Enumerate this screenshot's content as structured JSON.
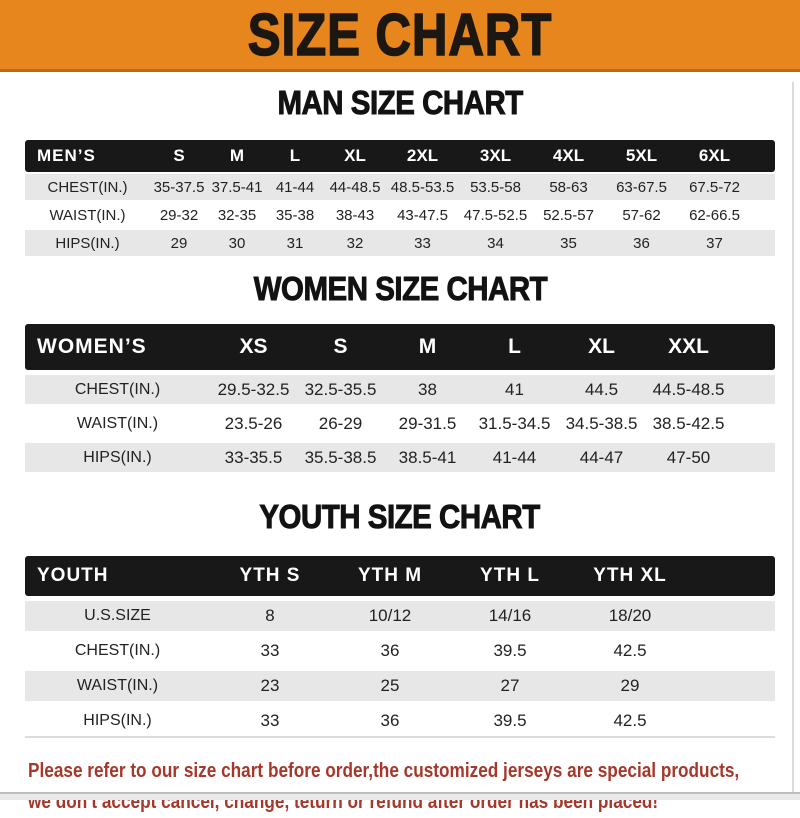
{
  "banner": {
    "title": "SIZE CHART"
  },
  "sections": [
    {
      "heading": "MAN SIZE CHART",
      "label": "MEN’S",
      "columns": [
        "S",
        "M",
        "L",
        "XL",
        "2XL",
        "3XL",
        "4XL",
        "5XL",
        "6XL"
      ],
      "rows": [
        {
          "label": "CHEST(IN.)",
          "values": [
            "35-37.5",
            "37.5-41",
            "41-44",
            "44-48.5",
            "48.5-53.5",
            "53.5-58",
            "58-63",
            "63-67.5",
            "67.5-72"
          ]
        },
        {
          "label": "WAIST(IN.)",
          "values": [
            "29-32",
            "32-35",
            "35-38",
            "38-43",
            "43-47.5",
            "47.5-52.5",
            "52.5-57",
            "57-62",
            "62-66.5"
          ]
        },
        {
          "label": "HIPS(IN.)",
          "values": [
            "29",
            "30",
            "31",
            "32",
            "33",
            "34",
            "35",
            "36",
            "37"
          ]
        }
      ]
    },
    {
      "heading": "WOMEN SIZE CHART",
      "label": "WOMEN’S",
      "columns": [
        "XS",
        "S",
        "M",
        "L",
        "XL",
        "XXL"
      ],
      "rows": [
        {
          "label": "CHEST(IN.)",
          "values": [
            "29.5-32.5",
            "32.5-35.5",
            "38",
            "41",
            "44.5",
            "44.5-48.5"
          ]
        },
        {
          "label": "WAIST(IN.)",
          "values": [
            "23.5-26",
            "26-29",
            "29-31.5",
            "31.5-34.5",
            "34.5-38.5",
            "38.5-42.5"
          ]
        },
        {
          "label": "HIPS(IN.)",
          "values": [
            "33-35.5",
            "35.5-38.5",
            "38.5-41",
            "41-44",
            "44-47",
            "47-50"
          ]
        }
      ]
    },
    {
      "heading": "YOUTH SIZE CHART",
      "label": "YOUTH",
      "columns": [
        "YTH S",
        "YTH M",
        "YTH L",
        "YTH XL"
      ],
      "rows": [
        {
          "label": "U.S.SIZE",
          "values": [
            "8",
            "10/12",
            "14/16",
            "18/20"
          ]
        },
        {
          "label": "CHEST(IN.)",
          "values": [
            "33",
            "36",
            "39.5",
            "42.5"
          ]
        },
        {
          "label": "WAIST(IN.)",
          "values": [
            "23",
            "25",
            "27",
            "29"
          ]
        },
        {
          "label": "HIPS(IN.)",
          "values": [
            "33",
            "36",
            "39.5",
            "42.5"
          ]
        }
      ]
    }
  ],
  "footer": {
    "line1": "Please refer to our size chart before order,the customized jerseys are special products,",
    "line2": "we don't accept cancel, change, teturn or refund after order has been placed!"
  },
  "colors": {
    "banner_orange": "#E8861E",
    "banner_border": "#BF6A10",
    "band_black": "#181818",
    "row_grey": "#E7E7E7",
    "footer_red": "#A5382B"
  }
}
